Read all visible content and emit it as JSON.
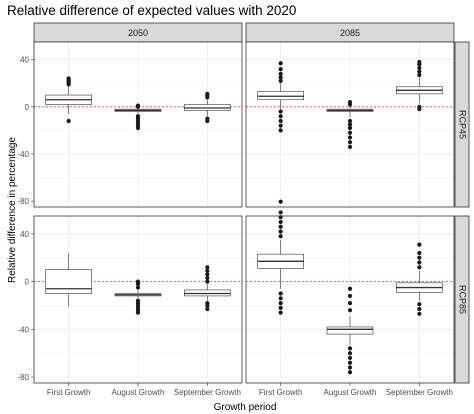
{
  "chart_data": {
    "type": "boxplot",
    "title": "Relative difference of expected values with 2020",
    "xlabel": "Growth period",
    "ylabel": "Relative difference in percentage",
    "categories": [
      "First Growth",
      "August Growth",
      "September Growth"
    ],
    "column_facets": [
      "2050",
      "2085"
    ],
    "row_facets": [
      "RCP45",
      "RCP85"
    ],
    "ylim": [
      -85,
      55
    ],
    "yticks": [
      -80,
      -40,
      0,
      40
    ],
    "ytick_labels": [
      "-80",
      "-40",
      "0",
      "40"
    ],
    "reference_line": 0,
    "grid": true,
    "panels": [
      {
        "facet_col": "2050",
        "facet_row": "RCP45",
        "boxes": [
          {
            "category": "First Growth",
            "whisker_low": -6,
            "q1": 2,
            "median": 6,
            "q3": 10,
            "whisker_high": 18,
            "outliers": [
              -12,
              19,
              20,
              21,
              22,
              23,
              24
            ]
          },
          {
            "category": "August Growth",
            "whisker_low": -7,
            "q1": -4,
            "median": -3,
            "q3": -2,
            "whisker_high": -1,
            "outliers": [
              -8,
              -10,
              -12,
              -14,
              -16,
              -18,
              0,
              1
            ]
          },
          {
            "category": "September Growth",
            "whisker_low": -8,
            "q1": -3,
            "median": -1,
            "q3": 2,
            "whisker_high": 6,
            "outliers": [
              -10,
              -12,
              8,
              10,
              11
            ]
          }
        ]
      },
      {
        "facet_col": "2085",
        "facet_row": "RCP45",
        "boxes": [
          {
            "category": "First Growth",
            "whisker_low": -2,
            "q1": 6,
            "median": 9,
            "q3": 13,
            "whisker_high": 20,
            "outliers": [
              -4,
              -8,
              -12,
              -16,
              -20,
              22,
              25,
              28,
              32,
              37
            ]
          },
          {
            "category": "August Growth",
            "whisker_low": -9,
            "q1": -4,
            "median": -3,
            "q3": -2,
            "whisker_high": 1,
            "outliers": [
              -12,
              -15,
              -18,
              -22,
              -26,
              -30,
              -34,
              2,
              4
            ]
          },
          {
            "category": "September Growth",
            "whisker_low": 3,
            "q1": 11,
            "median": 14,
            "q3": 17,
            "whisker_high": 25,
            "outliers": [
              0,
              -2,
              27,
              30,
              33,
              36,
              38
            ]
          }
        ]
      },
      {
        "facet_col": "2050",
        "facet_row": "RCP85",
        "boxes": [
          {
            "category": "First Growth",
            "whisker_low": -21,
            "q1": -10,
            "median": -6,
            "q3": 10,
            "whisker_high": 24,
            "outliers": []
          },
          {
            "category": "August Growth",
            "whisker_low": -14,
            "q1": -12,
            "median": -11,
            "q3": -10,
            "whisker_high": -7,
            "outliers": [
              -16,
              -18,
              -20,
              -22,
              -24,
              -26,
              -5,
              -2,
              0
            ]
          },
          {
            "category": "September Growth",
            "whisker_low": -16,
            "q1": -12,
            "median": -10,
            "q3": -7,
            "whisker_high": -2,
            "outliers": [
              -18,
              -20,
              -23,
              0,
              3,
              6,
              9,
              12
            ]
          }
        ]
      },
      {
        "facet_col": "2085",
        "facet_row": "RCP85",
        "boxes": [
          {
            "category": "First Growth",
            "whisker_low": -6,
            "q1": 11,
            "median": 17,
            "q3": 23,
            "whisker_high": 35,
            "outliers": [
              -10,
              -14,
              -18,
              -22,
              -26,
              38,
              42,
              46,
              50,
              54,
              58,
              67
            ]
          },
          {
            "category": "August Growth",
            "whisker_low": -53,
            "q1": -44,
            "median": -40,
            "q3": -38,
            "whisker_high": -29,
            "outliers": [
              -56,
              -60,
              -64,
              -68,
              -72,
              -76,
              -24,
              -18,
              -12,
              -6
            ]
          },
          {
            "category": "September Growth",
            "whisker_low": -16,
            "q1": -9,
            "median": -5,
            "q3": -1,
            "whisker_high": 9,
            "outliers": [
              -19,
              -23,
              -27,
              12,
              16,
              20,
              24,
              31
            ]
          }
        ]
      }
    ]
  }
}
